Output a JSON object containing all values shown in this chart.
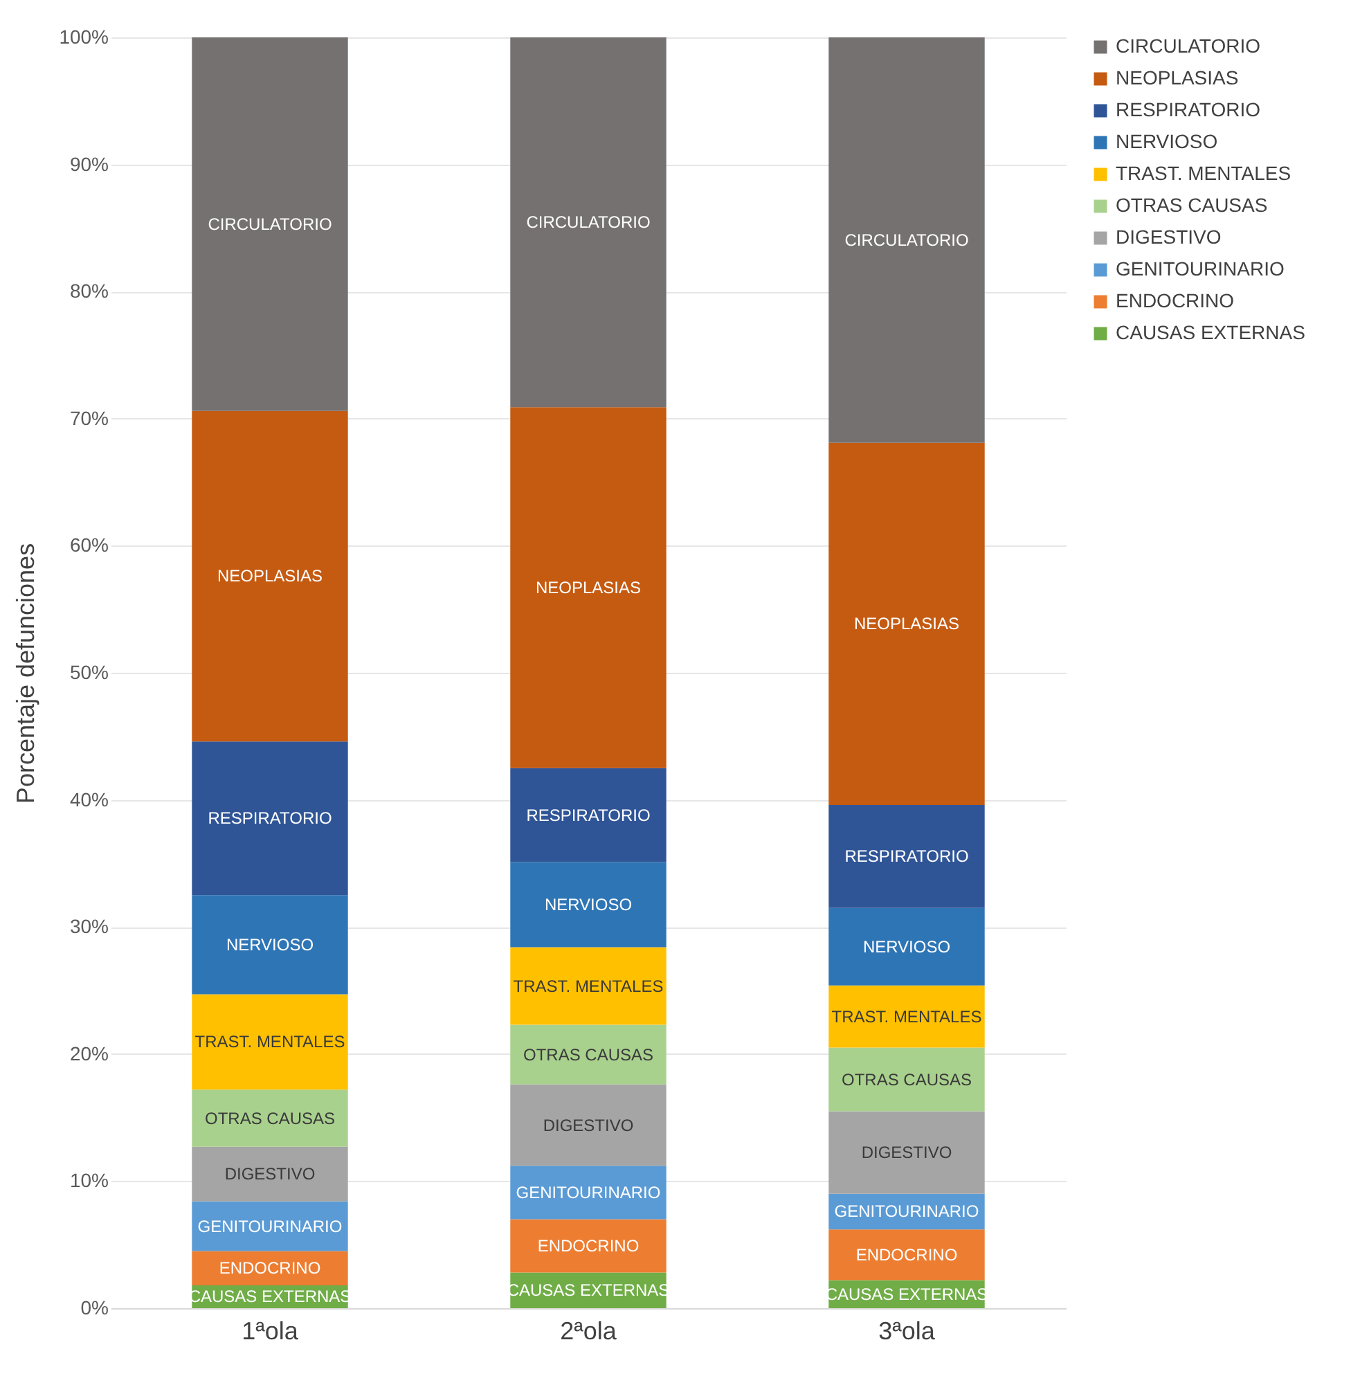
{
  "chart_data": {
    "type": "bar",
    "stacked": true,
    "ylabel": "Porcentaje defunciones",
    "categories": [
      "1ªola",
      "2ªola",
      "3ªola"
    ],
    "ylim": [
      0,
      100
    ],
    "yticks": [
      {
        "value": 0,
        "label": "0%"
      },
      {
        "value": 10,
        "label": "10%"
      },
      {
        "value": 20,
        "label": "20%"
      },
      {
        "value": 30,
        "label": "30%"
      },
      {
        "value": 40,
        "label": "40%"
      },
      {
        "value": 50,
        "label": "50%"
      },
      {
        "value": 60,
        "label": "60%"
      },
      {
        "value": 70,
        "label": "70%"
      },
      {
        "value": 80,
        "label": "80%"
      },
      {
        "value": 90,
        "label": "90%"
      },
      {
        "value": 100,
        "label": "100%"
      }
    ],
    "grid": "y",
    "legend": "right",
    "series": [
      {
        "name": "CAUSAS EXTERNAS",
        "color": "#70ad47",
        "values": [
          1.8,
          2.8,
          2.2
        ]
      },
      {
        "name": "ENDOCRINO",
        "color": "#ed7d31",
        "values": [
          2.7,
          4.2,
          4.0
        ]
      },
      {
        "name": "GENITOURINARIO",
        "color": "#5b9bd5",
        "values": [
          3.9,
          4.2,
          2.8
        ]
      },
      {
        "name": "DIGESTIVO",
        "color": "#a5a5a5",
        "values": [
          4.3,
          6.4,
          6.5
        ]
      },
      {
        "name": "OTRAS CAUSAS",
        "color": "#a9d18e",
        "values": [
          4.5,
          4.7,
          5.0
        ]
      },
      {
        "name": "TRAST. MENTALES",
        "color": "#ffc000",
        "values": [
          7.5,
          6.1,
          4.9
        ]
      },
      {
        "name": "NERVIOSO",
        "color": "#2e75b6",
        "values": [
          7.8,
          6.7,
          6.1
        ]
      },
      {
        "name": "RESPIRATORIO",
        "color": "#2f5597",
        "values": [
          12.1,
          7.4,
          8.1
        ]
      },
      {
        "name": "NEOPLASIAS",
        "color": "#c55a11",
        "values": [
          26.0,
          28.4,
          28.5
        ]
      },
      {
        "name": "CIRCULATORIO",
        "color": "#767171",
        "values": [
          29.4,
          29.1,
          31.9
        ]
      }
    ]
  }
}
